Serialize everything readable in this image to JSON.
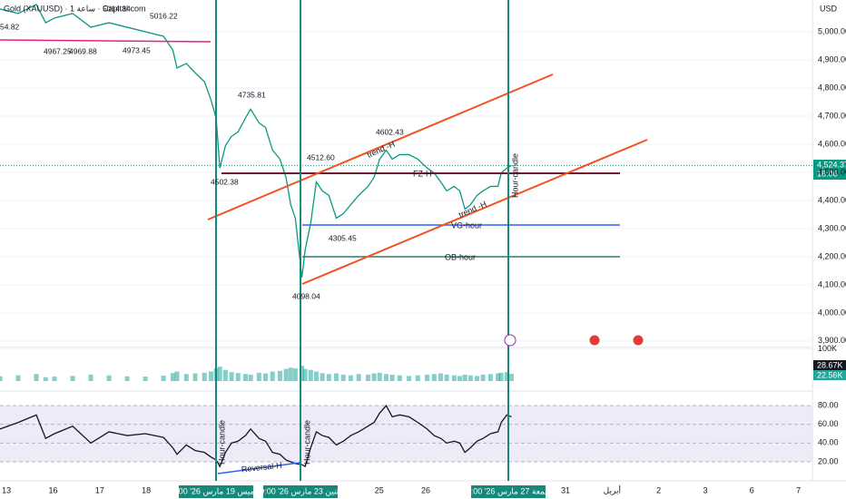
{
  "chart_data": [
    {
      "type": "line",
      "title": "Gold (XAUUSD) · 1 ساعة · Capital.com",
      "y_label": "USD",
      "color": "#089981",
      "x": [
        -0.14,
        0.25,
        0.64,
        0.84,
        1.03,
        1.42,
        1.81,
        2.2,
        2.59,
        2.98,
        3.37,
        3.57,
        3.66,
        3.86,
        4.05,
        4.25,
        4.39,
        4.5,
        4.58,
        4.7,
        4.83,
        4.97,
        5.13,
        5.24,
        5.42,
        5.56,
        5.71,
        5.87,
        6.0,
        6.1,
        6.2,
        6.34,
        6.41,
        6.53,
        6.65,
        6.78,
        6.92,
        7.08,
        7.23,
        7.39,
        7.56,
        7.76,
        7.89,
        8.01,
        8.15,
        8.28,
        8.44,
        8.64,
        8.83,
        9.03,
        9.18,
        9.32,
        9.45,
        9.61,
        9.73,
        9.84,
        9.96,
        10.1,
        10.23,
        10.39,
        10.55,
        10.62,
        10.74,
        10.84
      ],
      "values": [
        5081,
        5065,
        5097,
        5032,
        5049,
        5065,
        5016,
        5032,
        5016,
        5000,
        4984,
        4935,
        4871,
        4887,
        4854,
        4822,
        4757,
        4693,
        4515,
        4595,
        4628,
        4644,
        4693,
        4725,
        4676,
        4660,
        4579,
        4547,
        4482,
        4385,
        4337,
        4126,
        4223,
        4320,
        4466,
        4434,
        4418,
        4337,
        4353,
        4385,
        4418,
        4450,
        4482,
        4547,
        4579,
        4547,
        4563,
        4563,
        4547,
        4515,
        4498,
        4466,
        4434,
        4450,
        4434,
        4369,
        4385,
        4418,
        4434,
        4450,
        4450,
        4498,
        4515,
        4524.37
      ],
      "xlim": [
        -0.14,
        17.3
      ],
      "xticks": [
        {
          "value": 0,
          "label": "13"
        },
        {
          "value": 1,
          "label": "16"
        },
        {
          "value": 2,
          "label": "17"
        },
        {
          "value": 3,
          "label": "18"
        },
        {
          "value": 8,
          "label": "25"
        },
        {
          "value": 9,
          "label": "26"
        },
        {
          "value": 12,
          "label": "31"
        },
        {
          "value": 13,
          "label": "أبريل"
        },
        {
          "value": 14,
          "label": "2"
        },
        {
          "value": 15,
          "label": "3"
        },
        {
          "value": 16,
          "label": "6"
        },
        {
          "value": 17,
          "label": "7"
        }
      ],
      "ylim": [
        3877,
        5113
      ],
      "yticks": [
        {
          "value": 5000,
          "label": "5,000.00"
        },
        {
          "value": 4900,
          "label": "4,900.00"
        },
        {
          "value": 4800,
          "label": "4,800.00"
        },
        {
          "value": 4700,
          "label": "4,700.00"
        },
        {
          "value": 4600,
          "label": "4,600.00"
        },
        {
          "value": 4500,
          "label": "4,500.00"
        },
        {
          "value": 4400,
          "label": "4,400.00"
        },
        {
          "value": 4300,
          "label": "4,300.00"
        },
        {
          "value": 4200,
          "label": "4,200.00"
        },
        {
          "value": 4100,
          "label": "4,100.00"
        },
        {
          "value": 4000,
          "label": "4,000.00"
        },
        {
          "value": 3900,
          "label": "3,900.00"
        }
      ],
      "last_price_label": "4,524.37",
      "countdown": "16:06",
      "markers": [
        "13:00 '26 الخميس 19 مارس",
        "09:00 '26 الاثنين 23 مارس",
        "20:00 '26 الجمعة 27 مارس"
      ],
      "annotations": [
        "54.82",
        "5014.34",
        "5016.22",
        "4967.25",
        "4969.88",
        "4973.45",
        "4735.81",
        "4502.38",
        "4512.60",
        "4602.43",
        "4305.45",
        "4098.04",
        "trend -H",
        "FZ-H",
        "VG-hour",
        "OB-hour",
        "trend -H",
        "Hour-candle",
        "Hour-candle",
        "Hour-candle",
        "Reversal-H"
      ]
    },
    {
      "type": "bar",
      "color": "#26a69a",
      "x": [
        -0.14,
        0.25,
        0.64,
        0.84,
        1.03,
        1.42,
        1.81,
        2.2,
        2.59,
        2.98,
        3.37,
        3.57,
        3.66,
        3.86,
        4.05,
        4.25,
        4.39,
        4.5,
        4.58,
        4.7,
        4.83,
        4.97,
        5.13,
        5.24,
        5.42,
        5.56,
        5.71,
        5.87,
        6.0,
        6.1,
        6.2,
        6.34,
        6.41,
        6.53,
        6.65,
        6.78,
        6.92,
        7.08,
        7.23,
        7.39,
        7.56,
        7.76,
        7.89,
        8.01,
        8.15,
        8.28,
        8.44,
        8.64,
        8.83,
        9.03,
        9.18,
        9.32,
        9.45,
        9.61,
        9.73,
        9.84,
        9.96,
        10.1,
        10.23,
        10.39,
        10.55,
        10.62,
        10.74,
        10.84
      ],
      "values": [
        15000,
        18000,
        22000,
        12000,
        14000,
        16000,
        20000,
        18000,
        15000,
        14000,
        17000,
        25000,
        30000,
        22000,
        24000,
        26000,
        30000,
        40000,
        45000,
        35000,
        28000,
        25000,
        22000,
        20000,
        26000,
        24000,
        30000,
        32000,
        38000,
        42000,
        40000,
        48000,
        38000,
        35000,
        30000,
        25000,
        22000,
        24000,
        20000,
        18000,
        22000,
        20000,
        24000,
        26000,
        22000,
        20000,
        18000,
        16000,
        18000,
        20000,
        22000,
        24000,
        20000,
        18000,
        16000,
        20000,
        18000,
        16000,
        20000,
        22000,
        24000,
        26000,
        28000,
        22560
      ],
      "ylim": [
        0,
        105000
      ],
      "yticks": [
        {
          "value": 100000,
          "label": "100K"
        }
      ],
      "last_labels": [
        "28.67K",
        "22.56K"
      ]
    },
    {
      "type": "line",
      "color": "#131722",
      "x": [
        -0.14,
        0.25,
        0.64,
        0.84,
        1.03,
        1.42,
        1.81,
        2.2,
        2.59,
        2.98,
        3.37,
        3.57,
        3.66,
        3.86,
        4.05,
        4.25,
        4.39,
        4.5,
        4.58,
        4.7,
        4.83,
        4.97,
        5.13,
        5.24,
        5.42,
        5.56,
        5.71,
        5.87,
        6.0,
        6.1,
        6.2,
        6.34,
        6.41,
        6.53,
        6.65,
        6.78,
        6.92,
        7.08,
        7.23,
        7.39,
        7.56,
        7.76,
        7.89,
        8.01,
        8.15,
        8.28,
        8.44,
        8.64,
        8.83,
        9.03,
        9.18,
        9.32,
        9.45,
        9.61,
        9.73,
        9.84,
        9.96,
        10.1,
        10.23,
        10.39,
        10.55,
        10.62,
        10.74,
        10.84
      ],
      "values": [
        55,
        62,
        70,
        45,
        50,
        58,
        40,
        52,
        48,
        50,
        46,
        35,
        28,
        38,
        32,
        30,
        25,
        22,
        15,
        30,
        40,
        42,
        48,
        55,
        45,
        42,
        30,
        28,
        22,
        20,
        18,
        17,
        15,
        35,
        52,
        48,
        46,
        38,
        42,
        48,
        52,
        58,
        62,
        72,
        80,
        68,
        70,
        68,
        62,
        55,
        48,
        45,
        40,
        42,
        40,
        30,
        35,
        42,
        45,
        50,
        52,
        62,
        70,
        68
      ],
      "ylim": [
        7.4,
        86.8
      ],
      "yticks": [
        {
          "value": 80,
          "label": "80.00"
        },
        {
          "value": 60,
          "label": "60.00"
        },
        {
          "value": 40,
          "label": "40.00"
        },
        {
          "value": 20,
          "label": "20.00"
        }
      ]
    }
  ]
}
